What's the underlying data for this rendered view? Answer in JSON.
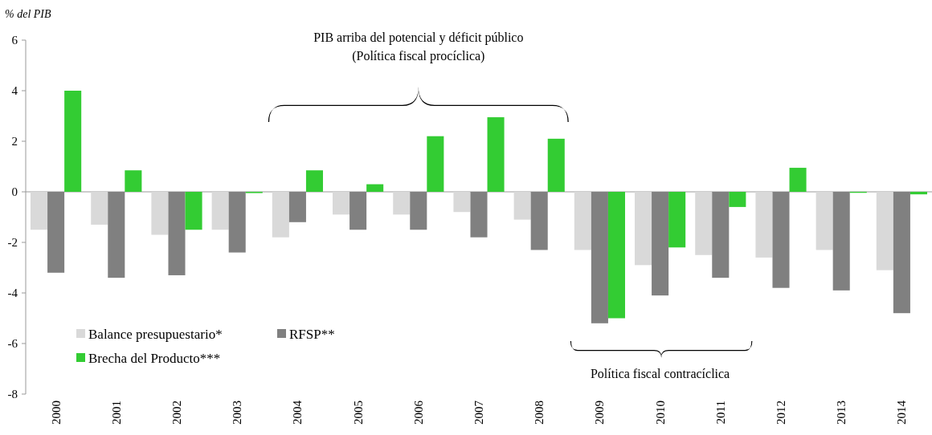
{
  "chart_data": {
    "type": "bar",
    "ylabel": "% del PIB",
    "categories": [
      "2000",
      "2001",
      "2002",
      "2003",
      "2004",
      "2005",
      "2006",
      "2007",
      "2008",
      "2009",
      "2010",
      "2011",
      "2012",
      "2013",
      "2014"
    ],
    "series": [
      {
        "name": "Balance presupuestario*",
        "color": "#d9d9d9",
        "values": [
          -1.5,
          -1.3,
          -1.7,
          -1.5,
          -1.8,
          -0.9,
          -0.9,
          -0.8,
          -1.1,
          -2.3,
          -2.9,
          -2.5,
          -2.6,
          -2.3,
          -3.1
        ]
      },
      {
        "name": "RFSP**",
        "color": "#808080",
        "values": [
          -3.2,
          -3.4,
          -3.3,
          -2.4,
          -1.2,
          -1.5,
          -1.5,
          -1.8,
          -2.3,
          -5.2,
          -4.1,
          -3.4,
          -3.8,
          -3.9,
          -4.8
        ]
      },
      {
        "name": "Brecha del Producto***",
        "color": "#33cc33",
        "values": [
          4.0,
          0.85,
          -1.5,
          -0.05,
          0.85,
          0.3,
          2.2,
          2.95,
          2.1,
          -5.0,
          -2.2,
          -0.6,
          0.95,
          -0.04,
          -0.1
        ]
      }
    ],
    "ylim": [
      -8,
      6
    ],
    "yticks": [
      -8,
      -6,
      -4,
      -2,
      0,
      2,
      4,
      6
    ],
    "legend": "bottom left",
    "annotations": [
      "PIB arriba del potencial y déficit público",
      "(Política fiscal procíclica)",
      "Política fiscal contracíclica"
    ]
  }
}
